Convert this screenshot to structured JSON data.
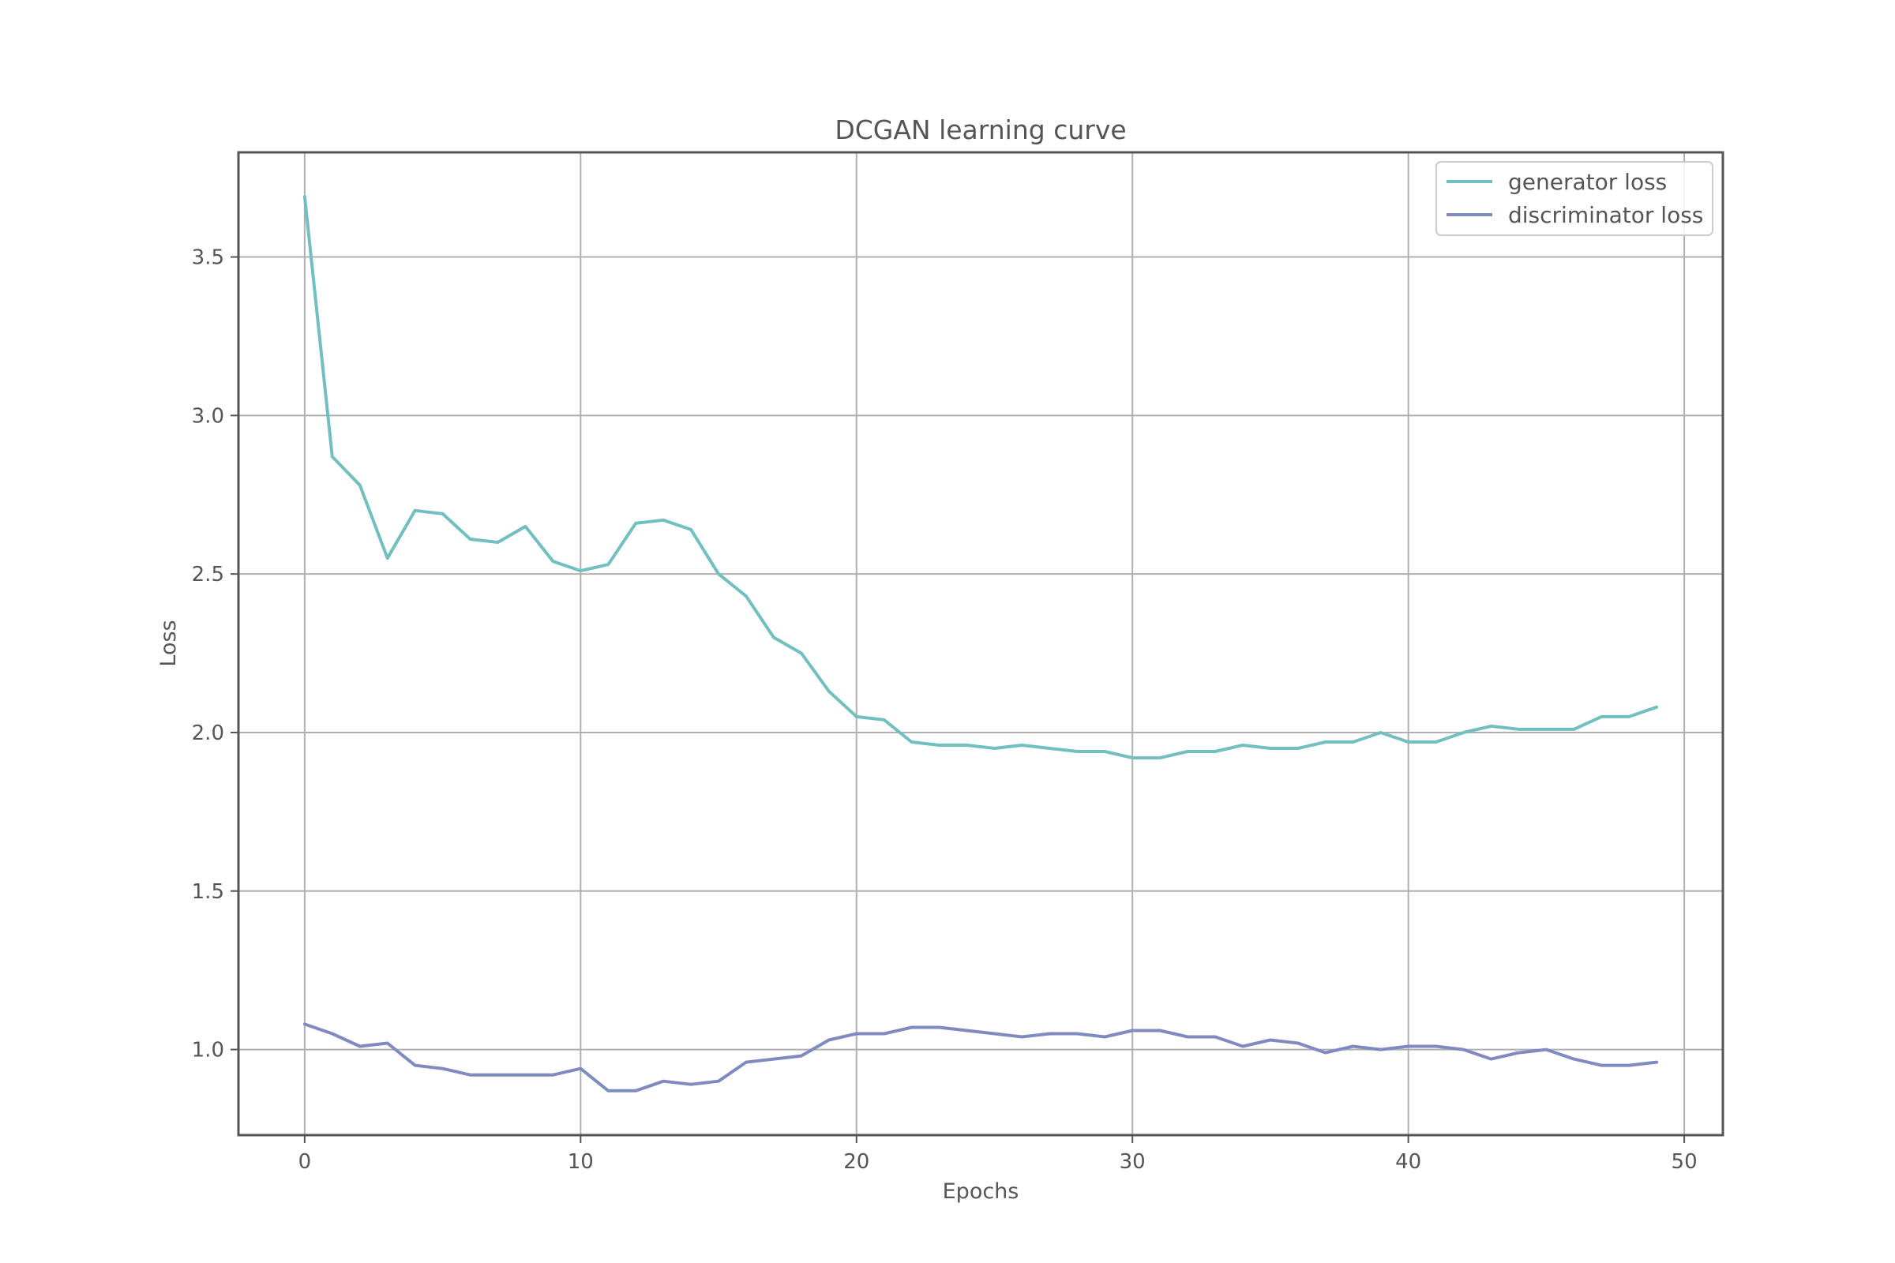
{
  "chart_data": {
    "type": "line",
    "title": "DCGAN learning curve",
    "xlabel": "Epochs",
    "ylabel": "Loss",
    "xlim": [
      -2.4,
      51.4
    ],
    "ylim": [
      0.73,
      3.83
    ],
    "xticks": [
      0,
      10,
      20,
      30,
      40,
      50
    ],
    "xtick_labels": [
      "0",
      "10",
      "20",
      "30",
      "40",
      "50"
    ],
    "yticks": [
      1.0,
      1.5,
      2.0,
      2.5,
      3.0,
      3.5
    ],
    "ytick_labels": [
      "1.0",
      "1.5",
      "2.0",
      "2.5",
      "3.0",
      "3.5"
    ],
    "grid": true,
    "legend_position": "top-right",
    "x": [
      0,
      1,
      2,
      3,
      4,
      5,
      6,
      7,
      8,
      9,
      10,
      11,
      12,
      13,
      14,
      15,
      16,
      17,
      18,
      19,
      20,
      21,
      22,
      23,
      24,
      25,
      26,
      27,
      28,
      29,
      30,
      31,
      32,
      33,
      34,
      35,
      36,
      37,
      38,
      39,
      40,
      41,
      42,
      43,
      44,
      45,
      46,
      47,
      48,
      49
    ],
    "series": [
      {
        "name": "generator loss",
        "color": "#72bfbf",
        "values": [
          3.69,
          2.87,
          2.78,
          2.55,
          2.7,
          2.69,
          2.61,
          2.6,
          2.65,
          2.54,
          2.51,
          2.53,
          2.66,
          2.67,
          2.64,
          2.5,
          2.43,
          2.3,
          2.25,
          2.13,
          2.05,
          2.04,
          1.97,
          1.96,
          1.96,
          1.95,
          1.96,
          1.95,
          1.94,
          1.94,
          1.92,
          1.92,
          1.94,
          1.94,
          1.96,
          1.95,
          1.95,
          1.97,
          1.97,
          2.0,
          1.97,
          1.97,
          2.0,
          2.02,
          2.01,
          2.01,
          2.01,
          2.05,
          2.05,
          2.08
        ]
      },
      {
        "name": "discriminator loss",
        "color": "#7f8bc0",
        "values": [
          1.08,
          1.05,
          1.01,
          1.02,
          0.95,
          0.94,
          0.92,
          0.92,
          0.92,
          0.92,
          0.94,
          0.87,
          0.87,
          0.9,
          0.89,
          0.9,
          0.96,
          0.97,
          0.98,
          1.03,
          1.05,
          1.05,
          1.07,
          1.07,
          1.06,
          1.05,
          1.04,
          1.05,
          1.05,
          1.04,
          1.06,
          1.06,
          1.04,
          1.04,
          1.01,
          1.03,
          1.02,
          0.99,
          1.01,
          1.0,
          1.01,
          1.01,
          1.0,
          0.97,
          0.99,
          1.0,
          0.97,
          0.95,
          0.95,
          0.96
        ]
      }
    ]
  }
}
